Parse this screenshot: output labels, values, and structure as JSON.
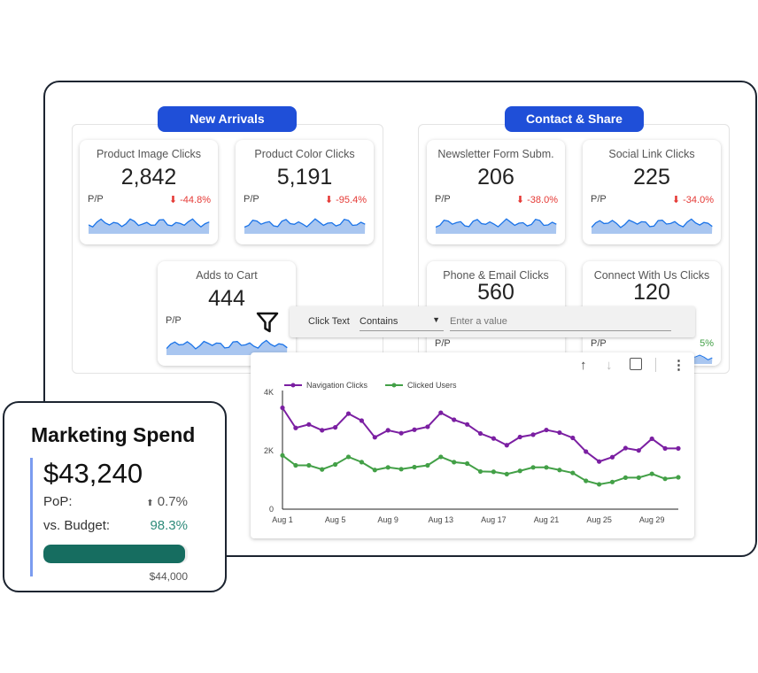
{
  "groups": [
    {
      "title": "New Arrivals",
      "cards": [
        {
          "title": "Product Image Clicks",
          "value": "2,842",
          "label": "P/P",
          "delta": "-44.8%"
        },
        {
          "title": "Product Color Clicks",
          "value": "5,191",
          "label": "P/P",
          "delta": "-95.4%"
        },
        {
          "title": "Adds to Cart",
          "value": "444",
          "label": "P/P",
          "delta": ""
        }
      ]
    },
    {
      "title": "Contact & Share",
      "cards": [
        {
          "title": "Newsletter Form Subm.",
          "value": "206",
          "label": "P/P",
          "delta": "-38.0%"
        },
        {
          "title": "Social Link Clicks",
          "value": "225",
          "label": "P/P",
          "delta": "-34.0%"
        },
        {
          "title": "Phone & Email Clicks",
          "value": "560",
          "label": "P/P",
          "delta": ""
        },
        {
          "title": "Connect With Us Clicks",
          "value": "120",
          "label": "P/P",
          "delta": "5%"
        }
      ]
    }
  ],
  "filter": {
    "field": "Click Text",
    "operator": "Contains",
    "placeholder": "Enter a value"
  },
  "chart_data": {
    "type": "line",
    "x": [
      "Aug 1",
      "Aug 2",
      "Aug 3",
      "Aug 4",
      "Aug 5",
      "Aug 6",
      "Aug 7",
      "Aug 8",
      "Aug 9",
      "Aug 10",
      "Aug 11",
      "Aug 12",
      "Aug 13",
      "Aug 14",
      "Aug 15",
      "Aug 16",
      "Aug 17",
      "Aug 18",
      "Aug 19",
      "Aug 20",
      "Aug 21",
      "Aug 22",
      "Aug 23",
      "Aug 24",
      "Aug 25",
      "Aug 26",
      "Aug 27",
      "Aug 28",
      "Aug 29",
      "Aug 30",
      "Aug 31"
    ],
    "xticks": [
      "Aug 1",
      "Aug 5",
      "Aug 9",
      "Aug 13",
      "Aug 17",
      "Aug 21",
      "Aug 25",
      "Aug 29"
    ],
    "yticks": [
      "0",
      "2K",
      "4K"
    ],
    "ylim": [
      0,
      4000
    ],
    "legend": "top-left",
    "series": [
      {
        "name": "Navigation Clicks",
        "color": "#7b1fa2",
        "values": [
          3470,
          2780,
          2900,
          2700,
          2800,
          3270,
          3030,
          2460,
          2700,
          2600,
          2720,
          2820,
          3300,
          3060,
          2900,
          2590,
          2420,
          2190,
          2470,
          2550,
          2710,
          2620,
          2440,
          1970,
          1630,
          1780,
          2090,
          2010,
          2410,
          2080,
          2080
        ]
      },
      {
        "name": "Clicked Users",
        "color": "#43a047",
        "values": [
          1840,
          1500,
          1500,
          1360,
          1530,
          1790,
          1610,
          1340,
          1430,
          1370,
          1440,
          1500,
          1790,
          1610,
          1560,
          1290,
          1280,
          1200,
          1310,
          1430,
          1430,
          1340,
          1240,
          970,
          850,
          930,
          1080,
          1080,
          1210,
          1040,
          1090
        ]
      }
    ]
  },
  "spend": {
    "title": "Marketing Spend",
    "value": "$43,240",
    "pop_label": "PoP:",
    "pop_value": "0.7%",
    "budget_label": "vs. Budget:",
    "budget_value": "98.3%",
    "budget_total": "$44,000",
    "progress": 0.983,
    "bar_color": "#166d60"
  }
}
